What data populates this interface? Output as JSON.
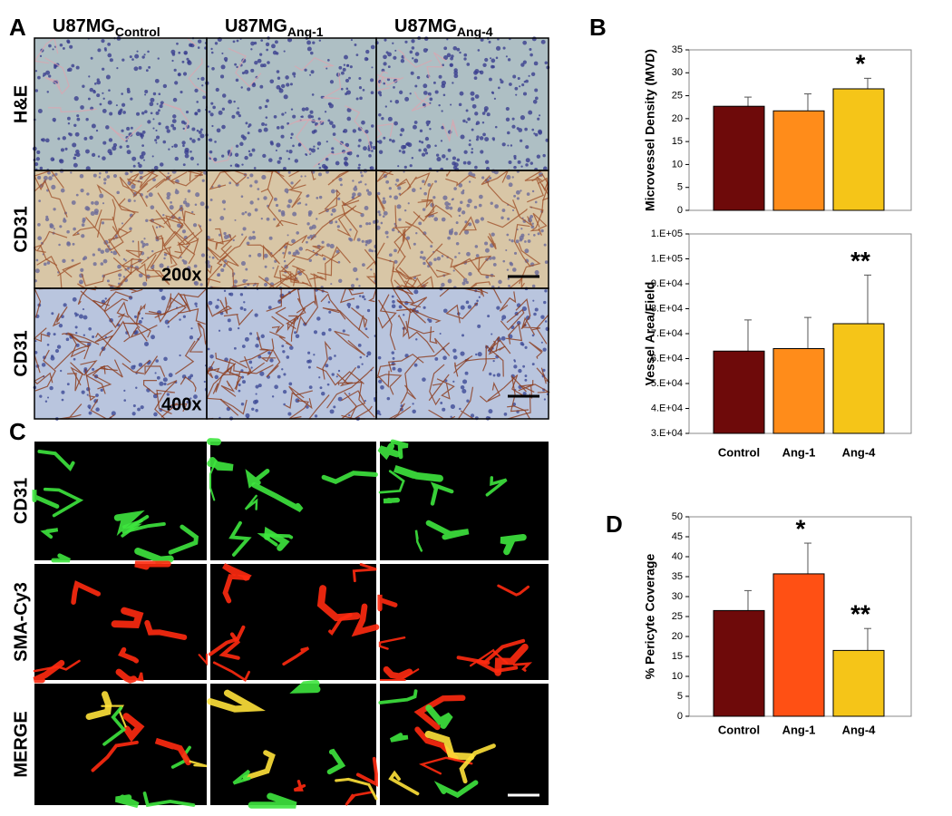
{
  "figure": {
    "panels": [
      "A",
      "B",
      "C",
      "D"
    ],
    "panel_a": {
      "column_headers": [
        {
          "main": "U87MG",
          "sub": "Control"
        },
        {
          "main": "U87MG",
          "sub": "Ang-1"
        },
        {
          "main": "U87MG",
          "sub": "Ang-4"
        }
      ],
      "row_labels": [
        "H&E",
        "CD31",
        "CD31"
      ],
      "magnifications": [
        "200x",
        "400x"
      ]
    },
    "panel_c": {
      "row_labels": [
        "CD31",
        "SMA-Cy3",
        "MERGE"
      ]
    }
  },
  "chart_data": [
    {
      "type": "bar",
      "y_label": "Microvessel Density (MVD)",
      "categories": [
        null,
        null,
        null
      ],
      "values": [
        22.7,
        21.7,
        26.5
      ],
      "errors": [
        2.0,
        3.7,
        2.3
      ],
      "colors": [
        "#6e0a0a",
        "#ff8c1a",
        "#f5c518"
      ],
      "ylim": [
        0,
        35
      ],
      "yticks": [
        0,
        5,
        10,
        15,
        20,
        25,
        30,
        35
      ],
      "annotations": [
        {
          "text": "*",
          "bar": 2
        }
      ]
    },
    {
      "type": "bar",
      "y_label": "Vessel Area/Field",
      "categories": [
        "Control",
        "Ang-1",
        "Ang-4"
      ],
      "values": [
        63000,
        64000,
        74000
      ],
      "errors": [
        12500,
        12500,
        19500
      ],
      "colors": [
        "#6e0a0a",
        "#ff8c1a",
        "#f5c518"
      ],
      "ylim": [
        30000,
        110000
      ],
      "yticks": [
        {
          "value": 30000,
          "label": "3.E+04"
        },
        {
          "value": 40000,
          "label": "4.E+04"
        },
        {
          "value": 50000,
          "label": "5.E+04"
        },
        {
          "value": 60000,
          "label": "6.E+04"
        },
        {
          "value": 70000,
          "label": "7.E+04"
        },
        {
          "value": 80000,
          "label": "8.E+04"
        },
        {
          "value": 90000,
          "label": "9.E+04"
        },
        {
          "value": 100000,
          "label": "1.E+05"
        },
        {
          "value": 110000,
          "label": "1.E+05"
        }
      ],
      "annotations": [
        {
          "text": "**",
          "bar": 2
        }
      ]
    },
    {
      "type": "bar",
      "y_label": "% Pericyte Coverage",
      "categories": [
        "Control",
        "Ang-1",
        "Ang-4"
      ],
      "values": [
        26.5,
        35.7,
        16.5
      ],
      "errors": [
        5.0,
        7.7,
        5.5
      ],
      "colors": [
        "#6e0a0a",
        "#ff5014",
        "#f5c518"
      ],
      "ylim": [
        0,
        50
      ],
      "yticks": [
        0,
        5,
        10,
        15,
        20,
        25,
        30,
        35,
        40,
        45,
        50
      ],
      "annotations": [
        {
          "text": "*",
          "bar": 1
        },
        {
          "text": "**",
          "bar": 2
        }
      ]
    }
  ]
}
